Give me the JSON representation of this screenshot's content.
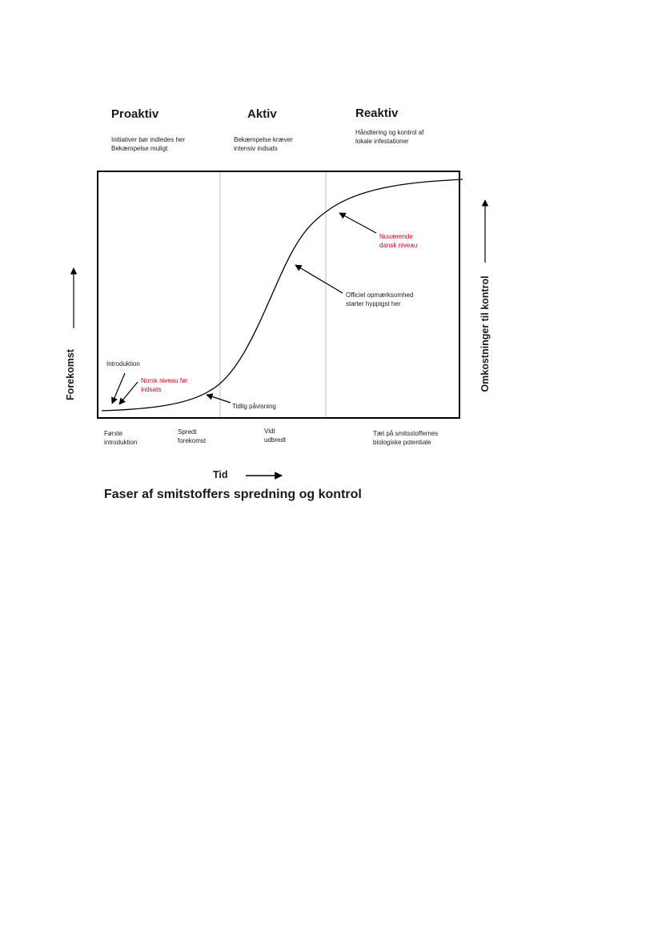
{
  "phases": [
    {
      "title": "Proaktiv",
      "desc": [
        "Initiativer bør indledes her",
        "Bekæmpelse muligt"
      ]
    },
    {
      "title": "Aktiv",
      "desc": [
        "Bekæmpelse kræver",
        "intensiv indsats"
      ]
    },
    {
      "title": "Reaktiv",
      "desc": [
        "Håndtering og kontrol af",
        "lokale infestationer"
      ]
    }
  ],
  "annotations": {
    "introduktion": "Introduktion",
    "norsk_niveau": [
      "Norsk niveau  før",
      "indsats"
    ],
    "tidlig_pavisning": "Tidlig påvisning",
    "officiel": [
      "Officiel opmærksomhed",
      "starter hyppigst her"
    ],
    "nuvaerende": [
      "Nuværende",
      "dansk niveau"
    ]
  },
  "stages": [
    [
      "Første",
      "introduktion"
    ],
    [
      "Spredt",
      "forekomst"
    ],
    [
      "Vidt",
      "udbredt"
    ],
    [
      "Tæt på smitsstoffernes",
      "biologiske potentiale"
    ]
  ],
  "axes": {
    "y_left": "Forekomst",
    "y_right": "Omkostninger til kontrol",
    "x": "Tid"
  },
  "caption": "Faser af smitstoffers spredning og kontrol",
  "colors": {
    "highlight": "#d0021b",
    "line": "#000000",
    "divider": "#bdbdbd"
  }
}
